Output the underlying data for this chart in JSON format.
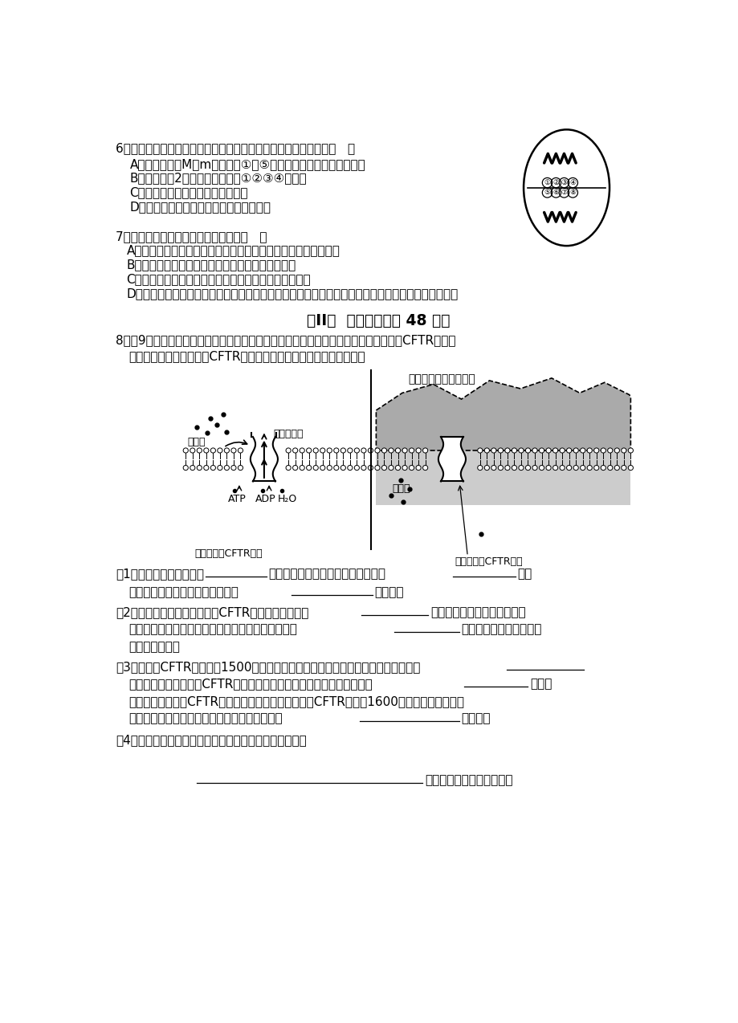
{
  "bg_color": "#ffffff",
  "q6_text": "6．右图示某雄性二倍体生物正在进行分裂的细胞，叙述正确的是（   ）",
  "q6_A": "   A．若等位基因M和m分别位于①和⑤上，则一定是基因突变的结果",
  "q6_B": "   B．该细胞有2个染色体组，其中①②③④为一组",
  "q6_C": "   C．该细胞分裂后直接产生两个精子",
  "q6_D": "   D．细胞在图示分裂过程中实现了基因重组",
  "q7_text": "7．下列关于生物进化的叙述正确的是（   ）",
  "q7_A": "  A．自然选择可以产生新的基因从而导致种群的基因频率发生改变",
  "q7_B": "  B．生物多样性的形成也就是新物种不断形成的过程",
  "q7_C": "  C．生殖隔离是物种形成的必要条件，是生物进化的实质",
  "q7_D": "  D．随着光合生物的出现，大气中有了氧气，为好氧生物的出现创造了条件，这一事实体现了共同进化",
  "section2_title": "第II卷  非选择题（共 48 分）",
  "q8_intro1": "8．（9分）囊性纤维化是一种严重的遗传性疾病，导致这一疾病发生的主要原因是编码CFTR蛋白的",
  "q8_intro2": "    基因发生突变，下图表示CFTR蛋白在氯离子跨膜运输过程中的作用。",
  "q8_1_pre": "（1）图中所示为细胞膜的",
  "q8_1_mid": "模型，其中构成细胞膜的基本支架是",
  "q8_1_end": "，氯",
  "q8_1b_pre": "    离子跨膜运输的正常进行是由膜上",
  "q8_1b_end": "决定的。",
  "q8_2_pre": "（2）在正常细胞内，氯离子在CFTR蛋白的协助下通过",
  "q8_2_mid": "方式转运至细胞外，随着氯离",
  "q8_2b": "    子在细胞外浓度逐渐升高，水分子向膜外扩散的速度",
  "q8_2b_end": "，使覆盖于肺部细胞表面",
  "q8_2c": "    的黏液被稀释。",
  "q8_3_pre": "（3）正常的CFTR蛋白约由1500个氨基酸组成，直接指导该蛋白质合成的模板至少由",
  "q8_3b": "    个核苷酸组成。有一种CFTR基因突变会导致肽链错误折叠，使蛋白质的",
  "q8_3b_end": "结构发",
  "q8_3c": "    生改变，从而影响CFTR蛋白的正常功能。目前已发现CFTR基因有1600多种突变，都能导致",
  "q8_3d": "    严重的囊性纤维化，这一事实说明基因突变具有",
  "q8_3d_end": "等特点。",
  "q8_4_pre": "（4）载体蛋白的合成过程涉及的遗传信息的传递方向为：",
  "q8_4_ans": "（以流程图的形式表示）。",
  "diag_label_mucus_thick": "黏稠的分泌物不断积累",
  "diag_label_cl_left": "氯离子",
  "diag_label_thin_mucus": "稀薄的黏液",
  "diag_label_atp": "ATP",
  "diag_label_adp": "ADP",
  "diag_label_h2o": "H₂O",
  "diag_label_normal_cftr": "功能正常的CFTR蛋白",
  "diag_label_cl_right": "氯离子",
  "diag_label_abnormal_cftr": "异常关闭的CFTR蛋白"
}
